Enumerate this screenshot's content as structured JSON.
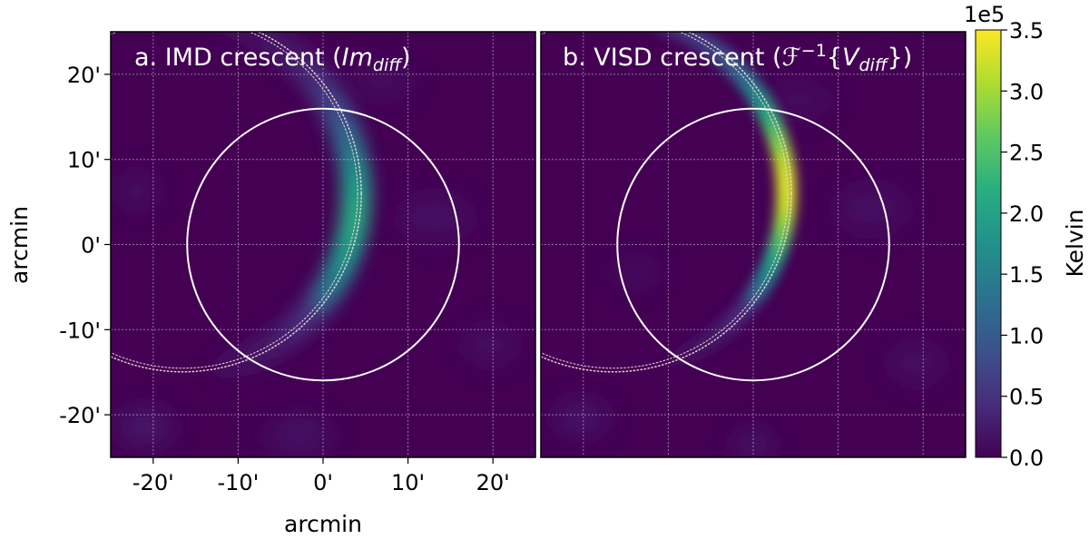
{
  "chart_data": {
    "type": "heatmap",
    "colormap": "viridis",
    "colorbar": {
      "label": "Kelvin",
      "scale_label": "1e5",
      "range": [
        0,
        3.5
      ],
      "ticks": [
        0.0,
        0.5,
        1.0,
        1.5,
        2.0,
        2.5,
        3.0,
        3.5
      ],
      "tick_labels": [
        "0.0",
        "0.5",
        "1.0",
        "1.5",
        "2.0",
        "2.5",
        "3.0",
        "3.5"
      ]
    },
    "x_range": [
      -25,
      25
    ],
    "y_range": [
      -25,
      25
    ],
    "x_ticks": [
      -20,
      -10,
      0,
      10,
      20
    ],
    "y_ticks": [
      -20,
      -10,
      0,
      10,
      20
    ],
    "x_tick_labels": [
      "-20'",
      "-10'",
      "0'",
      "10'",
      "20'"
    ],
    "y_tick_labels": [
      "-20'",
      "-10'",
      "0'",
      "10'",
      "20'"
    ],
    "xlabel": "arcmin",
    "ylabel": "arcmin",
    "grid": true,
    "solid_circle": {
      "center": [
        0,
        0
      ],
      "radius": 16,
      "color": "#ffffff"
    },
    "dashed_circle": {
      "center": [
        -16.5,
        6
      ],
      "radius": 21,
      "color": "#f0d0d0"
    },
    "panels": [
      {
        "id": "a",
        "title_main": "a. IMD crescent (",
        "title_var": "Im",
        "title_sub": "diff",
        "title_close": ")",
        "peak_value": 2.1,
        "peak_y": 5,
        "thickness": 1.6
      },
      {
        "id": "b",
        "title_main": "b. VISD crescent (",
        "title_var": "ℱ",
        "title_sup": "−1",
        "title_mid": "{",
        "title_var2": "V",
        "title_sub": "diff",
        "title_close": "})",
        "peak_value": 3.3,
        "peak_y": 8,
        "thickness": 1.1
      }
    ]
  }
}
